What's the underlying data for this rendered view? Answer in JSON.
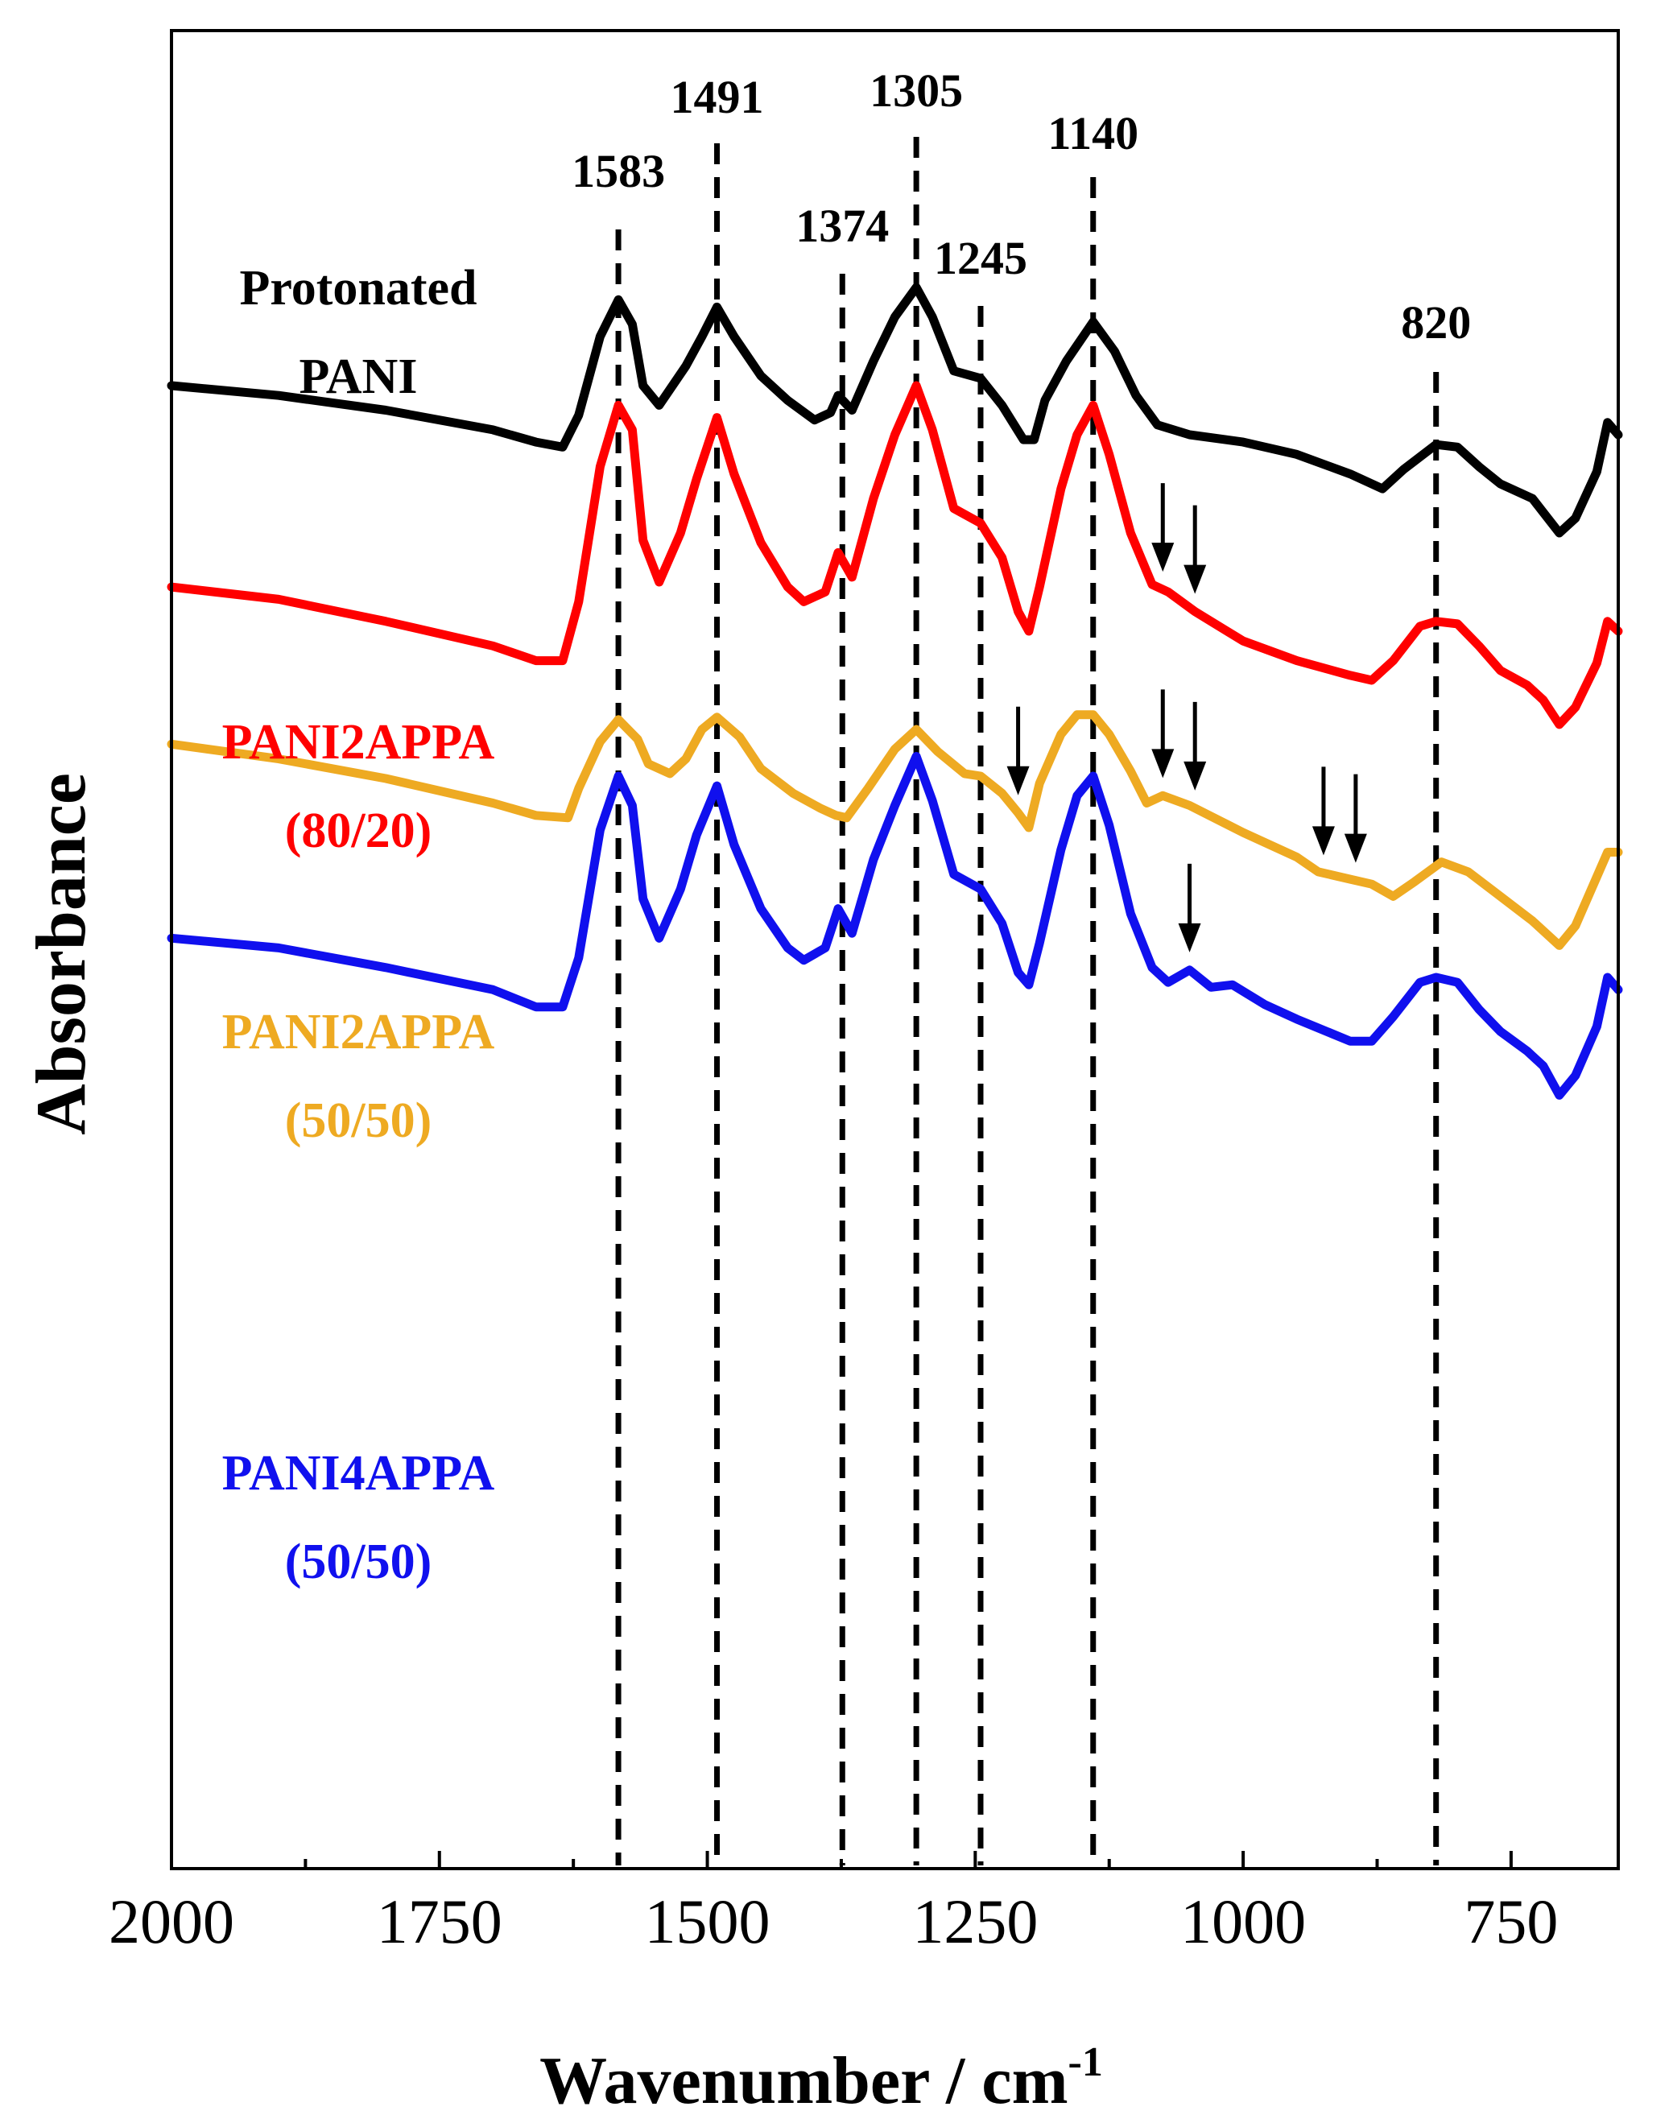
{
  "chart_data": {
    "type": "line",
    "title": "",
    "xlabel": "Wavenumber / cm",
    "xlabel_superscript": "-1",
    "ylabel": "Absorbance",
    "xlim": [
      2000,
      650
    ],
    "x_reversed": true,
    "y_ticks_shown": false,
    "x_ticks": [
      2000,
      1750,
      1500,
      1250,
      1000,
      750
    ],
    "grid": false,
    "legend": "none",
    "reference_lines": [
      {
        "x": 1583,
        "label": "1583"
      },
      {
        "x": 1491,
        "label": "1491"
      },
      {
        "x": 1374,
        "label": "1374"
      },
      {
        "x": 1305,
        "label": "1305"
      },
      {
        "x": 1245,
        "label": "1245"
      },
      {
        "x": 1140,
        "label": "1140"
      },
      {
        "x": 820,
        "label": "820"
      }
    ],
    "series": [
      {
        "name": "Protonated PANI",
        "label_lines": [
          "Protonated",
          "PANI"
        ],
        "color": "#000000",
        "offset": 0,
        "points": [
          [
            2000,
            0.2
          ],
          [
            1900,
            0.16
          ],
          [
            1800,
            0.1
          ],
          [
            1700,
            0.02
          ],
          [
            1660,
            -0.03
          ],
          [
            1635,
            -0.05
          ],
          [
            1620,
            0.08
          ],
          [
            1600,
            0.4
          ],
          [
            1583,
            0.55
          ],
          [
            1570,
            0.45
          ],
          [
            1560,
            0.2
          ],
          [
            1545,
            0.12
          ],
          [
            1520,
            0.28
          ],
          [
            1505,
            0.4
          ],
          [
            1491,
            0.52
          ],
          [
            1475,
            0.4
          ],
          [
            1450,
            0.24
          ],
          [
            1425,
            0.14
          ],
          [
            1400,
            0.06
          ],
          [
            1385,
            0.09
          ],
          [
            1378,
            0.16
          ],
          [
            1365,
            0.1
          ],
          [
            1345,
            0.3
          ],
          [
            1325,
            0.48
          ],
          [
            1305,
            0.6
          ],
          [
            1290,
            0.48
          ],
          [
            1270,
            0.26
          ],
          [
            1245,
            0.23
          ],
          [
            1225,
            0.12
          ],
          [
            1205,
            -0.02
          ],
          [
            1195,
            -0.02
          ],
          [
            1185,
            0.14
          ],
          [
            1165,
            0.3
          ],
          [
            1140,
            0.46
          ],
          [
            1120,
            0.34
          ],
          [
            1100,
            0.16
          ],
          [
            1080,
            0.04
          ],
          [
            1050,
            0.0
          ],
          [
            1000,
            -0.03
          ],
          [
            950,
            -0.08
          ],
          [
            900,
            -0.16
          ],
          [
            870,
            -0.22
          ],
          [
            850,
            -0.14
          ],
          [
            820,
            -0.04
          ],
          [
            800,
            -0.05
          ],
          [
            780,
            -0.13
          ],
          [
            760,
            -0.2
          ],
          [
            730,
            -0.26
          ],
          [
            705,
            -0.4
          ],
          [
            690,
            -0.34
          ],
          [
            670,
            -0.15
          ],
          [
            660,
            0.05
          ],
          [
            650,
            0.0
          ]
        ],
        "peak_arrows": []
      },
      {
        "name": "PANI2APPA (80/20)",
        "label_lines": [
          "PANI2APPA",
          "(80/20)"
        ],
        "color": "#ff0000",
        "offset": -0.88,
        "points": [
          [
            2000,
            0.26
          ],
          [
            1900,
            0.21
          ],
          [
            1800,
            0.12
          ],
          [
            1700,
            0.02
          ],
          [
            1660,
            -0.04
          ],
          [
            1635,
            -0.04
          ],
          [
            1620,
            0.2
          ],
          [
            1600,
            0.75
          ],
          [
            1583,
            1.0
          ],
          [
            1570,
            0.9
          ],
          [
            1560,
            0.45
          ],
          [
            1545,
            0.28
          ],
          [
            1525,
            0.48
          ],
          [
            1510,
            0.7
          ],
          [
            1491,
            0.95
          ],
          [
            1475,
            0.72
          ],
          [
            1450,
            0.44
          ],
          [
            1425,
            0.26
          ],
          [
            1410,
            0.2
          ],
          [
            1390,
            0.24
          ],
          [
            1378,
            0.4
          ],
          [
            1365,
            0.3
          ],
          [
            1345,
            0.62
          ],
          [
            1325,
            0.88
          ],
          [
            1305,
            1.08
          ],
          [
            1290,
            0.9
          ],
          [
            1270,
            0.58
          ],
          [
            1245,
            0.52
          ],
          [
            1225,
            0.38
          ],
          [
            1210,
            0.16
          ],
          [
            1200,
            0.08
          ],
          [
            1190,
            0.26
          ],
          [
            1170,
            0.66
          ],
          [
            1155,
            0.88
          ],
          [
            1140,
            1.0
          ],
          [
            1125,
            0.8
          ],
          [
            1105,
            0.48
          ],
          [
            1085,
            0.27
          ],
          [
            1070,
            0.24
          ],
          [
            1045,
            0.16
          ],
          [
            1000,
            0.04
          ],
          [
            950,
            -0.04
          ],
          [
            900,
            -0.1
          ],
          [
            880,
            -0.12
          ],
          [
            860,
            -0.04
          ],
          [
            835,
            0.1
          ],
          [
            820,
            0.12
          ],
          [
            800,
            0.11
          ],
          [
            780,
            0.02
          ],
          [
            760,
            -0.08
          ],
          [
            735,
            -0.14
          ],
          [
            720,
            -0.2
          ],
          [
            705,
            -0.3
          ],
          [
            690,
            -0.23
          ],
          [
            670,
            -0.05
          ],
          [
            660,
            0.12
          ],
          [
            650,
            0.08
          ]
        ],
        "peak_arrows": [
          1075,
          1045
        ]
      },
      {
        "name": "PANI2APPA (50/50)",
        "label_lines": [
          "PANI2APPA",
          "(50/50)"
        ],
        "color": "#eeaa22",
        "offset": -1.5,
        "points": [
          [
            2000,
            0.24
          ],
          [
            1900,
            0.18
          ],
          [
            1800,
            0.1
          ],
          [
            1700,
            0.0
          ],
          [
            1660,
            -0.05
          ],
          [
            1630,
            -0.06
          ],
          [
            1620,
            0.06
          ],
          [
            1600,
            0.25
          ],
          [
            1583,
            0.34
          ],
          [
            1565,
            0.26
          ],
          [
            1555,
            0.16
          ],
          [
            1535,
            0.12
          ],
          [
            1520,
            0.18
          ],
          [
            1505,
            0.3
          ],
          [
            1491,
            0.35
          ],
          [
            1470,
            0.27
          ],
          [
            1450,
            0.14
          ],
          [
            1420,
            0.04
          ],
          [
            1395,
            -0.02
          ],
          [
            1380,
            -0.05
          ],
          [
            1370,
            -0.06
          ],
          [
            1350,
            0.06
          ],
          [
            1325,
            0.22
          ],
          [
            1305,
            0.3
          ],
          [
            1285,
            0.21
          ],
          [
            1260,
            0.12
          ],
          [
            1245,
            0.11
          ],
          [
            1225,
            0.04
          ],
          [
            1210,
            -0.04
          ],
          [
            1200,
            -0.1
          ],
          [
            1190,
            0.08
          ],
          [
            1170,
            0.28
          ],
          [
            1155,
            0.36
          ],
          [
            1140,
            0.36
          ],
          [
            1125,
            0.28
          ],
          [
            1105,
            0.13
          ],
          [
            1090,
            0.0
          ],
          [
            1075,
            0.03
          ],
          [
            1050,
            -0.01
          ],
          [
            1000,
            -0.12
          ],
          [
            950,
            -0.22
          ],
          [
            930,
            -0.28
          ],
          [
            900,
            -0.31
          ],
          [
            880,
            -0.33
          ],
          [
            860,
            -0.38
          ],
          [
            840,
            -0.32
          ],
          [
            815,
            -0.24
          ],
          [
            790,
            -0.28
          ],
          [
            760,
            -0.38
          ],
          [
            730,
            -0.48
          ],
          [
            705,
            -0.58
          ],
          [
            690,
            -0.5
          ],
          [
            670,
            -0.3
          ],
          [
            660,
            -0.2
          ],
          [
            650,
            -0.2
          ]
        ],
        "peak_arrows": [
          1210,
          1075,
          1045,
          925,
          895
        ]
      },
      {
        "name": "PANI4APPA (50/50)",
        "label_lines": [
          "PANI4APPA",
          "(50/50)"
        ],
        "color": "#1010ee",
        "offset": -2.31,
        "points": [
          [
            2000,
            0.26
          ],
          [
            1900,
            0.22
          ],
          [
            1800,
            0.14
          ],
          [
            1700,
            0.05
          ],
          [
            1660,
            -0.02
          ],
          [
            1635,
            -0.02
          ],
          [
            1620,
            0.18
          ],
          [
            1600,
            0.7
          ],
          [
            1583,
            0.92
          ],
          [
            1570,
            0.8
          ],
          [
            1560,
            0.42
          ],
          [
            1545,
            0.26
          ],
          [
            1525,
            0.46
          ],
          [
            1510,
            0.68
          ],
          [
            1491,
            0.88
          ],
          [
            1475,
            0.64
          ],
          [
            1450,
            0.38
          ],
          [
            1425,
            0.22
          ],
          [
            1410,
            0.17
          ],
          [
            1390,
            0.22
          ],
          [
            1378,
            0.38
          ],
          [
            1365,
            0.28
          ],
          [
            1345,
            0.58
          ],
          [
            1325,
            0.8
          ],
          [
            1305,
            1.0
          ],
          [
            1290,
            0.82
          ],
          [
            1270,
            0.52
          ],
          [
            1245,
            0.46
          ],
          [
            1225,
            0.32
          ],
          [
            1210,
            0.12
          ],
          [
            1200,
            0.07
          ],
          [
            1190,
            0.24
          ],
          [
            1170,
            0.62
          ],
          [
            1155,
            0.84
          ],
          [
            1140,
            0.92
          ],
          [
            1125,
            0.72
          ],
          [
            1105,
            0.36
          ],
          [
            1085,
            0.14
          ],
          [
            1070,
            0.08
          ],
          [
            1050,
            0.13
          ],
          [
            1030,
            0.06
          ],
          [
            1010,
            0.07
          ],
          [
            980,
            -0.01
          ],
          [
            950,
            -0.07
          ],
          [
            900,
            -0.16
          ],
          [
            880,
            -0.16
          ],
          [
            860,
            -0.06
          ],
          [
            835,
            0.08
          ],
          [
            820,
            0.1
          ],
          [
            800,
            0.08
          ],
          [
            780,
            -0.03
          ],
          [
            760,
            -0.12
          ],
          [
            735,
            -0.2
          ],
          [
            720,
            -0.26
          ],
          [
            705,
            -0.38
          ],
          [
            690,
            -0.3
          ],
          [
            670,
            -0.1
          ],
          [
            660,
            0.1
          ],
          [
            650,
            0.05
          ]
        ],
        "peak_arrows": [
          1050
        ]
      }
    ]
  }
}
